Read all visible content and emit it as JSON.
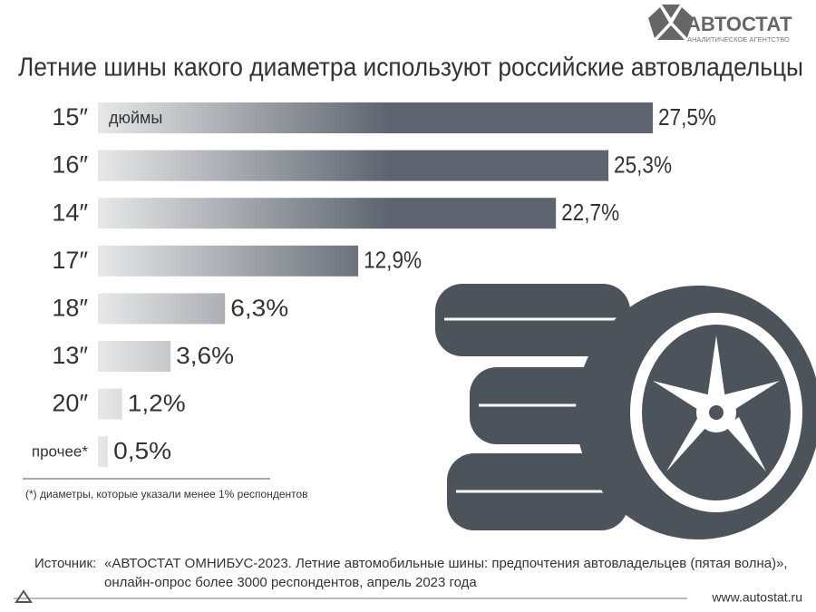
{
  "logo": {
    "name": "АВТОСТАТ",
    "tagline": "АНАЛИТИЧЕСКОЕ АГЕНТСТВО"
  },
  "chart_data": {
    "type": "bar",
    "orientation": "horizontal",
    "title": "Летние шины какого диаметра используют российские автовладельцы",
    "unit_label": "дюймы",
    "categories": [
      "15″",
      "16″",
      "14″",
      "17″",
      "18″",
      "13″",
      "20″",
      "прочее*"
    ],
    "values": [
      27.5,
      25.3,
      22.7,
      12.9,
      6.3,
      3.6,
      1.2,
      0.5
    ],
    "value_labels": [
      "27,5%",
      "25,3%",
      "22,7%",
      "12,9%",
      "6,3%",
      "3,6%",
      "1,2%",
      "0,5%"
    ],
    "color": "#5d646f",
    "color_light": "#e8e8e8",
    "footnote": "(*) диаметры, которые указали менее 1% респондентов"
  },
  "source": {
    "label": "Источник:",
    "lines": [
      "«АВТОСТАТ ОМНИБУС-2023. Летние автомобильные шины: предпочтения автовладельцев (пятая волна)»,",
      "онлайн-опрос более 3000 респондентов, апрель 2023 года"
    ]
  },
  "url": "www.autostat.ru"
}
